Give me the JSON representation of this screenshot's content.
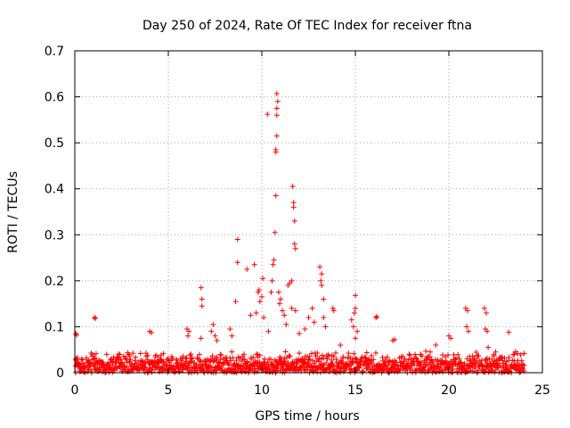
{
  "chart_data": {
    "type": "scatter",
    "title": "Day 250 of 2024, Rate Of TEC Index for receiver ftna",
    "xlabel": "GPS time / hours",
    "ylabel": "ROTI / TECUs",
    "xlim": [
      0,
      25
    ],
    "ylim": [
      0,
      0.7
    ],
    "xticks": [
      "0",
      "5",
      "10",
      "15",
      "20",
      "25"
    ],
    "yticks": [
      "0",
      "0.1",
      "0.2",
      "0.3",
      "0.4",
      "0.5",
      "0.6",
      "0.7"
    ],
    "grid": true,
    "marker": "+",
    "color": "#ff0000",
    "baseline_band": {
      "x_range": [
        0,
        24
      ],
      "y_range": [
        0.0,
        0.04
      ]
    },
    "points": [
      [
        0.05,
        0.085
      ],
      [
        0.1,
        0.082
      ],
      [
        1.05,
        0.12
      ],
      [
        1.1,
        0.118
      ],
      [
        4.0,
        0.09
      ],
      [
        4.1,
        0.087
      ],
      [
        6.0,
        0.095
      ],
      [
        6.05,
        0.08
      ],
      [
        6.1,
        0.09
      ],
      [
        6.75,
        0.185
      ],
      [
        6.8,
        0.16
      ],
      [
        6.8,
        0.145
      ],
      [
        6.75,
        0.075
      ],
      [
        7.3,
        0.09
      ],
      [
        7.4,
        0.105
      ],
      [
        7.5,
        0.08
      ],
      [
        7.6,
        0.07
      ],
      [
        8.3,
        0.095
      ],
      [
        8.4,
        0.08
      ],
      [
        8.7,
        0.29
      ],
      [
        8.7,
        0.24
      ],
      [
        8.6,
        0.155
      ],
      [
        9.2,
        0.225
      ],
      [
        9.4,
        0.125
      ],
      [
        9.6,
        0.235
      ],
      [
        9.7,
        0.13
      ],
      [
        9.8,
        0.175
      ],
      [
        9.85,
        0.18
      ],
      [
        9.9,
        0.155
      ],
      [
        10.0,
        0.165
      ],
      [
        10.05,
        0.205
      ],
      [
        10.1,
        0.12
      ],
      [
        10.3,
        0.562
      ],
      [
        10.35,
        0.09
      ],
      [
        10.5,
        0.175
      ],
      [
        10.55,
        0.2
      ],
      [
        10.6,
        0.235
      ],
      [
        10.65,
        0.245
      ],
      [
        10.7,
        0.305
      ],
      [
        10.75,
        0.385
      ],
      [
        10.75,
        0.485
      ],
      [
        10.75,
        0.48
      ],
      [
        10.8,
        0.515
      ],
      [
        10.8,
        0.56
      ],
      [
        10.8,
        0.575
      ],
      [
        10.8,
        0.607
      ],
      [
        10.85,
        0.59
      ],
      [
        10.9,
        0.175
      ],
      [
        10.95,
        0.15
      ],
      [
        11.0,
        0.16
      ],
      [
        11.1,
        0.135
      ],
      [
        11.2,
        0.125
      ],
      [
        11.3,
        0.105
      ],
      [
        11.4,
        0.19
      ],
      [
        11.5,
        0.195
      ],
      [
        11.6,
        0.2
      ],
      [
        11.65,
        0.405
      ],
      [
        11.7,
        0.37
      ],
      [
        11.7,
        0.36
      ],
      [
        11.75,
        0.33
      ],
      [
        11.75,
        0.28
      ],
      [
        11.8,
        0.27
      ],
      [
        11.6,
        0.14
      ],
      [
        11.8,
        0.135
      ],
      [
        12.0,
        0.085
      ],
      [
        12.3,
        0.095
      ],
      [
        12.5,
        0.12
      ],
      [
        12.7,
        0.14
      ],
      [
        12.8,
        0.11
      ],
      [
        13.1,
        0.23
      ],
      [
        13.15,
        0.2
      ],
      [
        13.2,
        0.215
      ],
      [
        13.2,
        0.19
      ],
      [
        13.3,
        0.16
      ],
      [
        13.3,
        0.12
      ],
      [
        13.4,
        0.1
      ],
      [
        13.8,
        0.14
      ],
      [
        13.85,
        0.135
      ],
      [
        14.2,
        0.06
      ],
      [
        14.8,
        0.115
      ],
      [
        14.9,
        0.1
      ],
      [
        14.95,
        0.13
      ],
      [
        15.0,
        0.168
      ],
      [
        15.0,
        0.14
      ],
      [
        15.1,
        0.09
      ],
      [
        15.0,
        0.075
      ],
      [
        16.1,
        0.12
      ],
      [
        16.15,
        0.122
      ],
      [
        17.0,
        0.07
      ],
      [
        17.1,
        0.072
      ],
      [
        18.5,
        0.04
      ],
      [
        19.0,
        0.045
      ],
      [
        19.3,
        0.06
      ],
      [
        20.0,
        0.08
      ],
      [
        20.1,
        0.075
      ],
      [
        20.9,
        0.14
      ],
      [
        21.0,
        0.135
      ],
      [
        20.95,
        0.1
      ],
      [
        21.05,
        0.09
      ],
      [
        21.9,
        0.14
      ],
      [
        22.0,
        0.13
      ],
      [
        21.95,
        0.095
      ],
      [
        22.05,
        0.09
      ],
      [
        22.1,
        0.055
      ],
      [
        22.5,
        0.045
      ],
      [
        23.2,
        0.088
      ],
      [
        23.5,
        0.04
      ]
    ]
  }
}
